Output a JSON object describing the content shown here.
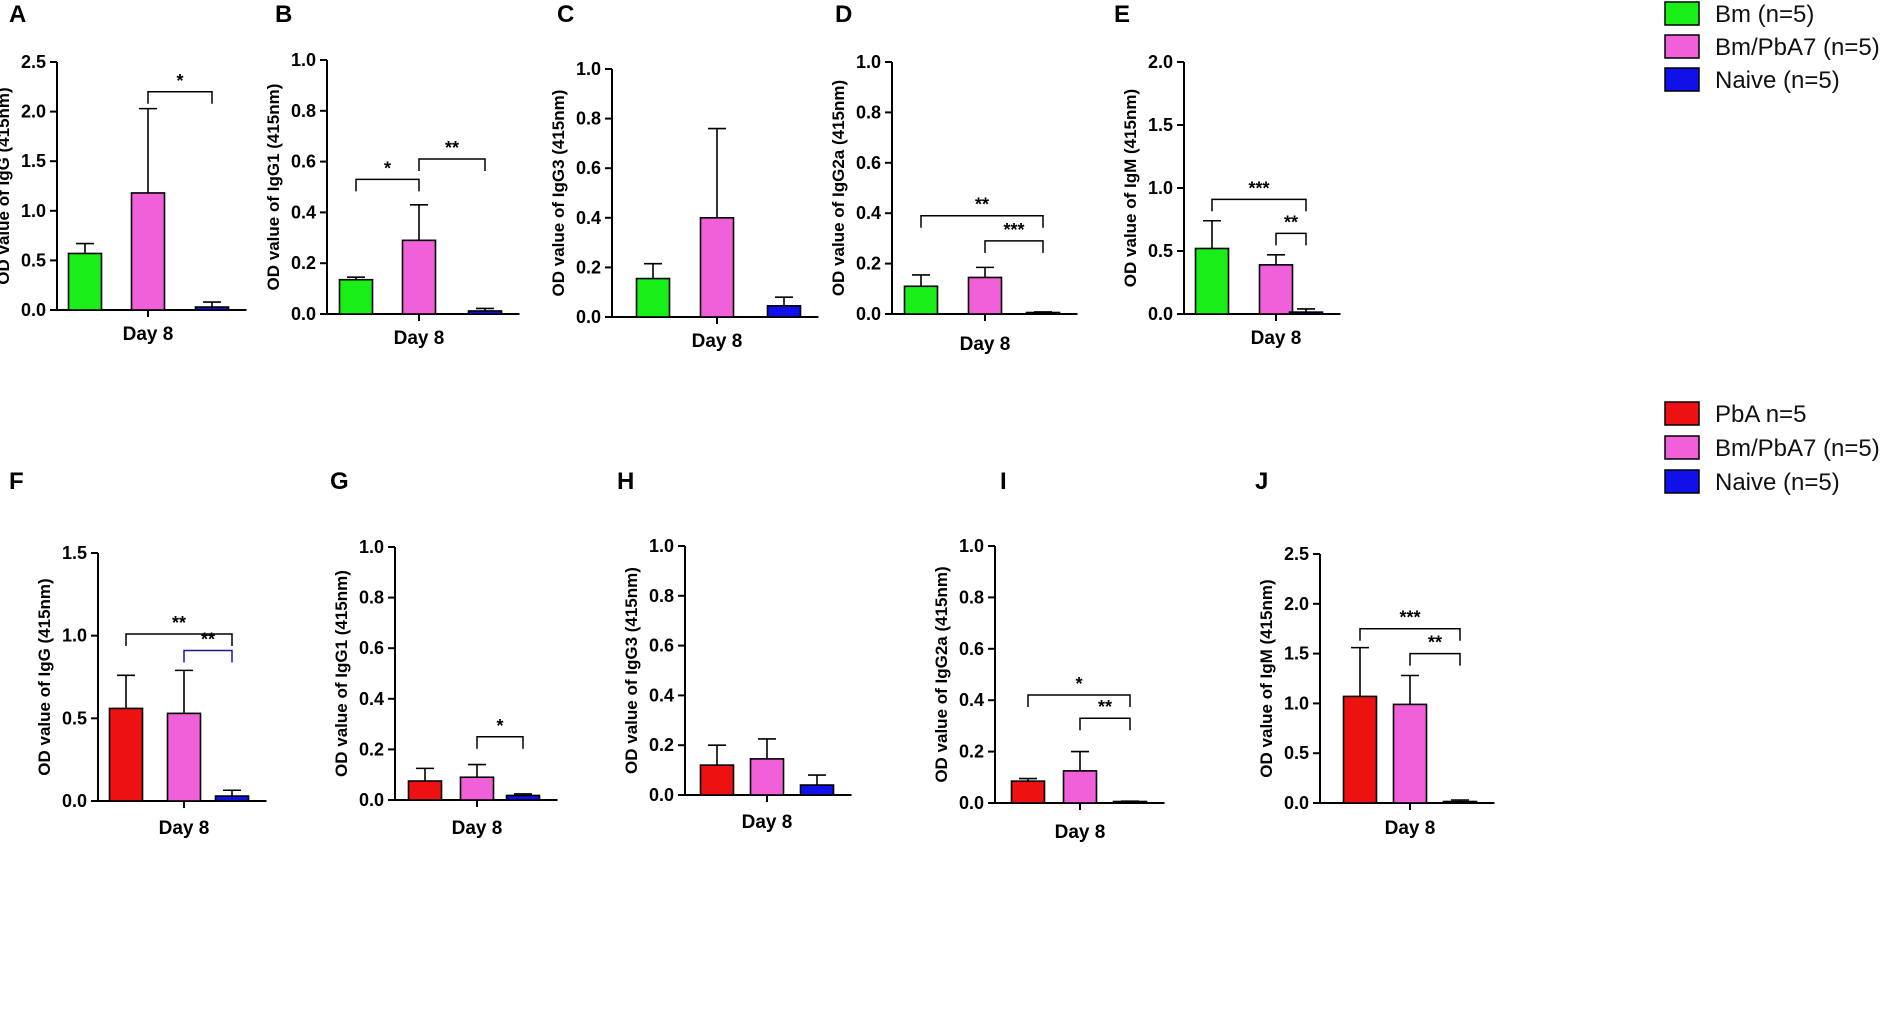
{
  "colors": {
    "Bm": "#19ee19",
    "Bm/PbA7": "#f060d8",
    "Naive": "#1010e8",
    "PbA": "#ee1111",
    "axis": "#000000",
    "bracket_blue": "#1a1a8a"
  },
  "legends": [
    {
      "items": [
        {
          "label": "Bm (n=5)",
          "color_key": "Bm"
        },
        {
          "label": "Bm/PbA7 (n=5)",
          "color_key": "Bm/PbA7"
        },
        {
          "label": "Naive (n=5)",
          "color_key": "Naive"
        }
      ]
    },
    {
      "items": [
        {
          "label": "PbA  n=5",
          "color_key": "PbA"
        },
        {
          "label": "Bm/PbA7 (n=5)",
          "color_key": "Bm/PbA7"
        },
        {
          "label": "Naive (n=5)",
          "color_key": "Naive"
        }
      ]
    }
  ],
  "chart_data": [
    {
      "panel": "A",
      "type": "bar",
      "ylabel": "OD value of IgG (415nm)",
      "xlabel": "Day 8",
      "ylim": [
        0,
        2.5
      ],
      "yticks": [
        "0.0",
        "0.5",
        "1.0",
        "1.5",
        "2.0",
        "2.5"
      ],
      "groups": [
        "Bm",
        "Bm/PbA7",
        "Naive"
      ],
      "values": [
        0.57,
        1.18,
        0.03
      ],
      "errors": [
        0.1,
        0.85,
        0.05
      ],
      "significance": [
        {
          "from": 1,
          "to": 2,
          "label": "*",
          "y": 2.2
        }
      ]
    },
    {
      "panel": "B",
      "type": "bar",
      "ylabel": "OD value of IgG1 (415nm)",
      "xlabel": "Day 8",
      "ylim": [
        0,
        1.0
      ],
      "yticks": [
        "0.0",
        "0.2",
        "0.4",
        "0.6",
        "0.8",
        "1.0"
      ],
      "groups": [
        "Bm",
        "Bm/PbA7",
        "Naive"
      ],
      "values": [
        0.135,
        0.29,
        0.012
      ],
      "errors": [
        0.01,
        0.14,
        0.01
      ],
      "significance": [
        {
          "from": 0,
          "to": 1,
          "label": "*",
          "y": 0.53
        },
        {
          "from": 1,
          "to": 2,
          "label": "**",
          "y": 0.61
        }
      ]
    },
    {
      "panel": "C",
      "type": "bar",
      "ylabel": "OD value of IgG3 (415nm)",
      "xlabel": "Day 8",
      "ylim": [
        0,
        1.0
      ],
      "yticks": [
        "0.0",
        "0.2",
        "0.4",
        "0.6",
        "0.8",
        "1.0"
      ],
      "groups": [
        "Bm",
        "Bm/PbA7",
        "Naive"
      ],
      "values": [
        0.155,
        0.4,
        0.045
      ],
      "errors": [
        0.06,
        0.36,
        0.035
      ],
      "significance": []
    },
    {
      "panel": "D",
      "type": "bar",
      "ylabel": "OD value of IgG2a (415nm)",
      "xlabel": "Day 8",
      "ylim": [
        0,
        1.0
      ],
      "yticks": [
        "0.0",
        "0.2",
        "0.4",
        "0.6",
        "0.8",
        "1.0"
      ],
      "groups": [
        "Bm",
        "Bm/PbA7",
        "Naive"
      ],
      "values": [
        0.11,
        0.145,
        0.005
      ],
      "errors": [
        0.045,
        0.04,
        0.003
      ],
      "significance": [
        {
          "from": 0,
          "to": 2,
          "label": "**",
          "y": 0.39
        },
        {
          "from": 1,
          "to": 2,
          "label": "***",
          "y": 0.29
        }
      ]
    },
    {
      "panel": "E",
      "type": "bar",
      "ylabel": "OD value of IgM (415nm)",
      "xlabel": "Day 8",
      "ylim": [
        0,
        2.0
      ],
      "yticks": [
        "0.0",
        "0.5",
        "1.0",
        "1.5",
        "2.0"
      ],
      "groups": [
        "Bm",
        "Bm/PbA7",
        "Naive"
      ],
      "values": [
        0.52,
        0.39,
        0.015
      ],
      "errors": [
        0.22,
        0.08,
        0.025
      ],
      "significance": [
        {
          "from": 0,
          "to": 2,
          "label": "***",
          "y": 0.91
        },
        {
          "from": 1,
          "to": 2,
          "label": "**",
          "y": 0.64
        }
      ]
    },
    {
      "panel": "F",
      "type": "bar",
      "ylabel": "OD value of IgG (415nm)",
      "xlabel": "Day 8",
      "ylim": [
        0,
        1.5
      ],
      "yticks": [
        "0.0",
        "0.5",
        "1.0",
        "1.5"
      ],
      "groups": [
        "PbA",
        "Bm/PbA7",
        "Naive"
      ],
      "values": [
        0.56,
        0.53,
        0.03
      ],
      "errors": [
        0.2,
        0.26,
        0.035
      ],
      "significance": [
        {
          "from": 0,
          "to": 2,
          "label": "**",
          "y": 1.01
        },
        {
          "from": 1,
          "to": 2,
          "label": "**",
          "y": 0.91,
          "color_key": "bracket_blue"
        }
      ]
    },
    {
      "panel": "G",
      "type": "bar",
      "ylabel": "OD value of IgG1 (415nm)",
      "xlabel": "Day 8",
      "ylim": [
        0,
        1.0
      ],
      "yticks": [
        "0.0",
        "0.2",
        "0.4",
        "0.6",
        "0.8",
        "1.0"
      ],
      "groups": [
        "PbA",
        "Bm/PbA7",
        "Naive"
      ],
      "values": [
        0.075,
        0.09,
        0.018
      ],
      "errors": [
        0.05,
        0.05,
        0.006
      ],
      "significance": [
        {
          "from": 1,
          "to": 2,
          "label": "*",
          "y": 0.25
        }
      ]
    },
    {
      "panel": "H",
      "type": "bar",
      "ylabel": "OD value of IgG3 (415nm)",
      "xlabel": "Day 8",
      "ylim": [
        0,
        1.0
      ],
      "yticks": [
        "0.0",
        "0.2",
        "0.4",
        "0.6",
        "0.8",
        "1.0"
      ],
      "groups": [
        "PbA",
        "Bm/PbA7",
        "Naive"
      ],
      "values": [
        0.12,
        0.145,
        0.04
      ],
      "errors": [
        0.08,
        0.08,
        0.04
      ],
      "significance": []
    },
    {
      "panel": "I",
      "type": "bar",
      "ylabel": "OD value of IgG2a (415nm)",
      "xlabel": "Day 8",
      "ylim": [
        0,
        1.0
      ],
      "yticks": [
        "0.0",
        "0.2",
        "0.4",
        "0.6",
        "0.8",
        "1.0"
      ],
      "groups": [
        "PbA",
        "Bm/PbA7",
        "Naive"
      ],
      "values": [
        0.085,
        0.125,
        0.004
      ],
      "errors": [
        0.01,
        0.075,
        0.003
      ],
      "significance": [
        {
          "from": 0,
          "to": 2,
          "label": "*",
          "y": 0.42
        },
        {
          "from": 1,
          "to": 2,
          "label": "**",
          "y": 0.33
        }
      ]
    },
    {
      "panel": "J",
      "type": "bar",
      "ylabel": "OD value of IgM (415nm)",
      "xlabel": "Day 8",
      "ylim": [
        0,
        2.5
      ],
      "yticks": [
        "0.0",
        "0.5",
        "1.0",
        "1.5",
        "2.0",
        "2.5"
      ],
      "groups": [
        "PbA",
        "Bm/PbA7",
        "Naive"
      ],
      "values": [
        1.07,
        0.99,
        0.01
      ],
      "errors": [
        0.49,
        0.29,
        0.02
      ],
      "significance": [
        {
          "from": 0,
          "to": 2,
          "label": "***",
          "y": 1.75
        },
        {
          "from": 1,
          "to": 2,
          "label": "**",
          "y": 1.5
        }
      ]
    }
  ]
}
